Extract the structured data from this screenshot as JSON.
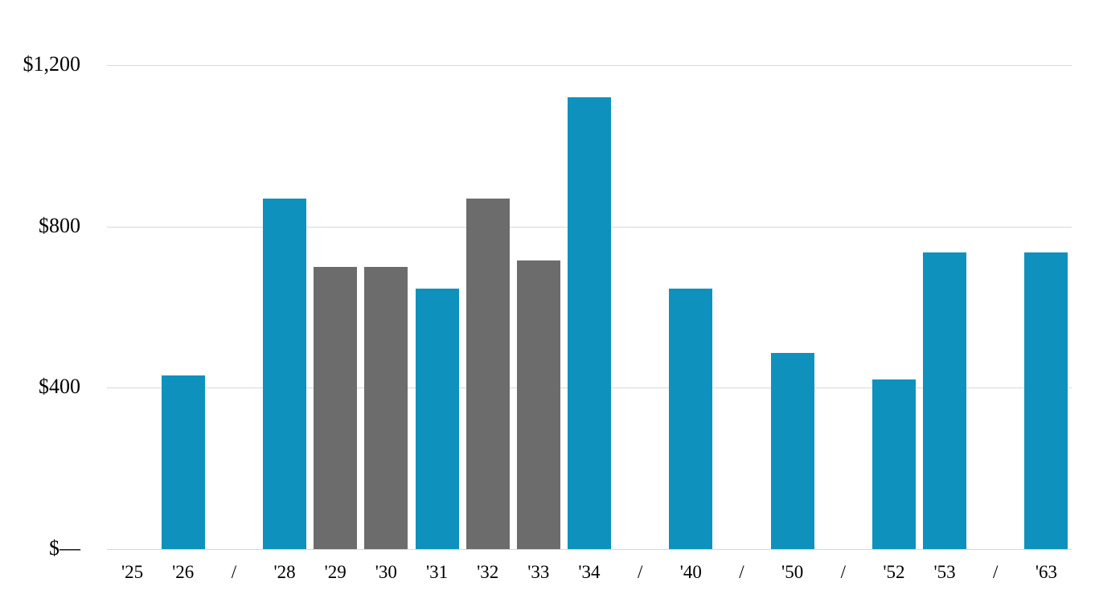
{
  "chart_data": {
    "type": "bar",
    "title": "",
    "xlabel": "",
    "ylabel": "",
    "categories": [
      "'25",
      "'26",
      "/",
      "'28",
      "'29",
      "'30",
      "'31",
      "'32",
      "'33",
      "'34",
      "/",
      "'40",
      "/",
      "'50",
      "/",
      "'52",
      "'53",
      "/",
      "'63"
    ],
    "values": [
      null,
      430,
      null,
      870,
      700,
      700,
      645,
      870,
      715,
      1120,
      null,
      645,
      null,
      486,
      null,
      421,
      736,
      null,
      736
    ],
    "bar_colors": [
      null,
      "#0E92BD",
      null,
      "#0E92BD",
      "#6C6C6C",
      "#6C6C6C",
      "#0E92BD",
      "#6C6C6C",
      "#6C6C6C",
      "#0E92BD",
      null,
      "#0E92BD",
      null,
      "#0E92BD",
      null,
      "#0E92BD",
      "#0E92BD",
      null,
      "#0E92BD"
    ],
    "y_ticks": [
      {
        "label": "$—",
        "value": 0
      },
      {
        "label": "$400",
        "value": 400
      },
      {
        "label": "$800",
        "value": 800
      },
      {
        "label": "$1,200",
        "value": 1200
      }
    ],
    "ylim": [
      0,
      1200
    ],
    "grid": true,
    "legend": "none",
    "colors": {
      "bar_primary": "#0E92BD",
      "bar_secondary": "#6C6C6C",
      "gridline": "#D9D9D9",
      "text": "#000000",
      "background": "#FFFFFF"
    }
  }
}
